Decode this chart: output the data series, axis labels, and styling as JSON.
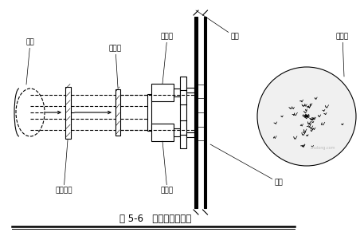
{
  "title": "图 5-6   钢管横撑安装图",
  "bg_color": "#ffffff",
  "line_color": "#000000",
  "labels": {
    "gang_guan": "钢管",
    "huo_luo_tou": "活络头",
    "huo_luo_suo_tou": "活络缩头",
    "qian_jin_ding_top": "千斤顶",
    "qian_jin_ding_bot": "千斤顶",
    "gang_chen": "钢棍",
    "wei_zhu": "椎注桩",
    "wei_lan": "围檩"
  },
  "figsize": [
    4.57,
    3.01
  ],
  "dpi": 100
}
